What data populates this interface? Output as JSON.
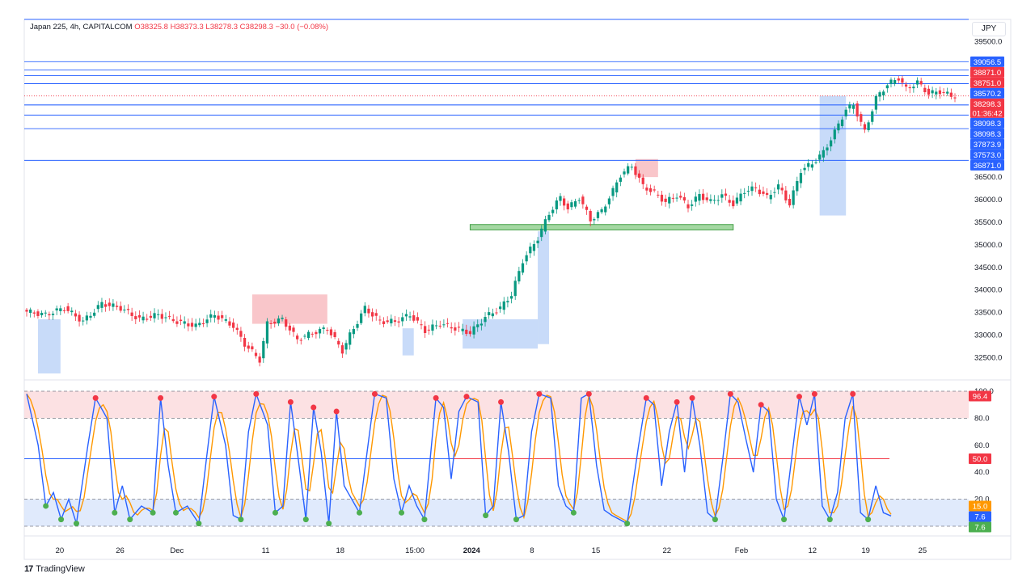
{
  "header": {
    "symbol_line": "Japan 225, 4h, CAPITALCOM",
    "ohlc_line": "O38325.8  H38373.3  L38278.3  C38298.3  −30.0 (−0.08%)",
    "currency": "JPY"
  },
  "footer": {
    "brand": "TradingView",
    "logo_glyph": "17"
  },
  "colors": {
    "up": "#089981",
    "down": "#f23645",
    "level_line": "#2962ff",
    "label_blue": "#2962ff",
    "label_red": "#f23645",
    "ob_red": "#f7b3b8",
    "ob_blue": "#b6cff7",
    "green_zone": "#7ec87a",
    "stoch_k": "#2962ff",
    "stoch_d": "#ff9800"
  },
  "chart_data": [
    {
      "type": "line",
      "name": "Japan 225 price (4h)",
      "ylim": [
        32150,
        39600
      ],
      "y_ticks": [
        "39500.0",
        "36500.0",
        "36000.0",
        "35500.0",
        "35000.0",
        "34500.0",
        "34000.0",
        "33500.0",
        "33000.0",
        "32500.0"
      ],
      "x_tick_labels": [
        "20",
        "26",
        "Dec",
        "11",
        "18",
        "15:00",
        "2024",
        "8",
        "15",
        "22",
        "Feb",
        "12",
        "19",
        "25"
      ],
      "anchors": [
        [
          0,
          33520
        ],
        [
          5,
          33450
        ],
        [
          10,
          33600
        ],
        [
          15,
          33300
        ],
        [
          20,
          33700
        ],
        [
          25,
          33600
        ],
        [
          30,
          33350
        ],
        [
          35,
          33450
        ],
        [
          40,
          33300
        ],
        [
          45,
          33200
        ],
        [
          50,
          33450
        ],
        [
          55,
          33200
        ],
        [
          58,
          32800
        ],
        [
          62,
          32450
        ],
        [
          64,
          33250
        ],
        [
          68,
          33350
        ],
        [
          72,
          32900
        ],
        [
          76,
          33050
        ],
        [
          80,
          33150
        ],
        [
          84,
          32650
        ],
        [
          86,
          33000
        ],
        [
          90,
          33600
        ],
        [
          94,
          33300
        ],
        [
          98,
          33300
        ],
        [
          102,
          33450
        ],
        [
          106,
          33100
        ],
        [
          110,
          33250
        ],
        [
          114,
          33150
        ],
        [
          118,
          33050
        ],
        [
          122,
          33400
        ],
        [
          126,
          33600
        ],
        [
          129,
          33900
        ],
        [
          132,
          34650
        ],
        [
          136,
          35150
        ],
        [
          139,
          35700
        ],
        [
          142,
          36050
        ],
        [
          144,
          35800
        ],
        [
          147,
          36050
        ],
        [
          150,
          35550
        ],
        [
          153,
          35750
        ],
        [
          156,
          36200
        ],
        [
          158,
          36550
        ],
        [
          161,
          36750
        ],
        [
          164,
          36300
        ],
        [
          167,
          36150
        ],
        [
          170,
          35950
        ],
        [
          173,
          36100
        ],
        [
          176,
          35850
        ],
        [
          179,
          36100
        ],
        [
          182,
          35950
        ],
        [
          185,
          36100
        ],
        [
          188,
          35900
        ],
        [
          191,
          36200
        ],
        [
          194,
          36250
        ],
        [
          197,
          36050
        ],
        [
          200,
          36300
        ],
        [
          203,
          35900
        ],
        [
          206,
          36650
        ],
        [
          209,
          36800
        ],
        [
          212,
          37050
        ],
        [
          215,
          37500
        ],
        [
          218,
          38000
        ],
        [
          220,
          38100
        ],
        [
          223,
          37500
        ],
        [
          226,
          38250
        ],
        [
          229,
          38550
        ],
        [
          232,
          38700
        ],
        [
          234,
          38450
        ],
        [
          237,
          38600
        ],
        [
          240,
          38350
        ],
        [
          243,
          38400
        ],
        [
          246,
          38300
        ],
        [
          247,
          38298
        ]
      ],
      "levels": [
        {
          "value": 39056.5,
          "label": "39056.5",
          "color": "blue"
        },
        {
          "value": 38871.0,
          "label": "38871.0",
          "color": "red"
        },
        {
          "value": 38751.0,
          "label": "38751.0",
          "color": "red"
        },
        {
          "value": 38570.2,
          "label": "38570.2",
          "color": "blue"
        },
        {
          "value": 38298.3,
          "label": "38298.3",
          "color": "red",
          "sublabel": "01:36:42"
        },
        {
          "value": 38098.3,
          "label": "38098.3",
          "color": "blue"
        },
        {
          "value": 38098.3,
          "label": "38098.3",
          "color": "blue"
        },
        {
          "value": 37873.9,
          "label": "37873.9",
          "color": "blue"
        },
        {
          "value": 37573.0,
          "label": "37573.0",
          "color": "blue"
        },
        {
          "value": 36871.0,
          "label": "36871.0",
          "color": "blue"
        }
      ],
      "zones": [
        {
          "kind": "green",
          "x0": 118,
          "x1": 188,
          "y0": 35330,
          "y1": 35450
        },
        {
          "kind": "blue",
          "x0": 211,
          "x1": 218,
          "y0": 35650,
          "y1": 38300
        },
        {
          "kind": "blue",
          "x0": 136,
          "x1": 139,
          "y0": 32800,
          "y1": 35300
        },
        {
          "kind": "red",
          "x0": 162,
          "x1": 168,
          "y0": 36500,
          "y1": 36900
        },
        {
          "kind": "red",
          "x0": 60,
          "x1": 80,
          "y0": 33250,
          "y1": 33900
        },
        {
          "kind": "blue",
          "x0": 3,
          "x1": 9,
          "y0": 32150,
          "y1": 33350
        },
        {
          "kind": "blue",
          "x0": 100,
          "x1": 103,
          "y0": 32550,
          "y1": 33150
        },
        {
          "kind": "blue",
          "x0": 116,
          "x1": 136,
          "y0": 32700,
          "y1": 33350
        }
      ]
    },
    {
      "type": "line",
      "name": "Stochastic",
      "ylim": [
        0,
        100
      ],
      "y_ticks": [
        "100.0",
        "80.0",
        "60.0",
        "40.0",
        "20.0"
      ],
      "bands": {
        "upper": 80,
        "lower": 20,
        "top": 100,
        "bottom": 0,
        "mid": 50
      },
      "labels": [
        {
          "value": 96.4,
          "label": "96.4",
          "color": "red"
        },
        {
          "value": 50.0,
          "label": "50.0",
          "color": "red"
        },
        {
          "value": 15.0,
          "label": "15.0",
          "color": "orange"
        },
        {
          "value": 7.6,
          "label": "7.6",
          "color": "blue"
        },
        {
          "value": 7.6,
          "label": "7.6",
          "color": "green"
        }
      ],
      "k_anchors": [
        [
          0,
          98
        ],
        [
          3,
          60
        ],
        [
          5,
          15
        ],
        [
          7,
          25
        ],
        [
          9,
          5
        ],
        [
          11,
          20
        ],
        [
          13,
          2
        ],
        [
          16,
          60
        ],
        [
          18,
          95
        ],
        [
          21,
          80
        ],
        [
          23,
          10
        ],
        [
          25,
          30
        ],
        [
          27,
          5
        ],
        [
          30,
          15
        ],
        [
          33,
          10
        ],
        [
          35,
          95
        ],
        [
          37,
          45
        ],
        [
          39,
          10
        ],
        [
          42,
          15
        ],
        [
          45,
          2
        ],
        [
          47,
          50
        ],
        [
          49,
          96
        ],
        [
          52,
          60
        ],
        [
          54,
          8
        ],
        [
          56,
          5
        ],
        [
          58,
          70
        ],
        [
          60,
          98
        ],
        [
          63,
          75
        ],
        [
          65,
          10
        ],
        [
          67,
          15
        ],
        [
          69,
          92
        ],
        [
          71,
          50
        ],
        [
          73,
          5
        ],
        [
          75,
          88
        ],
        [
          77,
          55
        ],
        [
          79,
          2
        ],
        [
          81,
          85
        ],
        [
          83,
          30
        ],
        [
          85,
          20
        ],
        [
          87,
          10
        ],
        [
          89,
          55
        ],
        [
          91,
          98
        ],
        [
          94,
          95
        ],
        [
          96,
          35
        ],
        [
          98,
          10
        ],
        [
          100,
          30
        ],
        [
          102,
          15
        ],
        [
          104,
          5
        ],
        [
          107,
          95
        ],
        [
          109,
          88
        ],
        [
          111,
          35
        ],
        [
          113,
          85
        ],
        [
          115,
          96
        ],
        [
          118,
          92
        ],
        [
          120,
          8
        ],
        [
          122,
          15
        ],
        [
          124,
          92
        ],
        [
          126,
          55
        ],
        [
          128,
          5
        ],
        [
          130,
          8
        ],
        [
          132,
          70
        ],
        [
          134,
          98
        ],
        [
          137,
          95
        ],
        [
          139,
          30
        ],
        [
          141,
          15
        ],
        [
          143,
          10
        ],
        [
          145,
          95
        ],
        [
          147,
          98
        ],
        [
          149,
          45
        ],
        [
          151,
          12
        ],
        [
          153,
          8
        ],
        [
          155,
          5
        ],
        [
          157,
          2
        ],
        [
          160,
          60
        ],
        [
          162,
          95
        ],
        [
          164,
          90
        ],
        [
          166,
          30
        ],
        [
          168,
          70
        ],
        [
          170,
          92
        ],
        [
          172,
          40
        ],
        [
          174,
          95
        ],
        [
          176,
          60
        ],
        [
          178,
          10
        ],
        [
          180,
          5
        ],
        [
          182,
          50
        ],
        [
          184,
          98
        ],
        [
          186,
          92
        ],
        [
          188,
          65
        ],
        [
          190,
          40
        ],
        [
          192,
          90
        ],
        [
          194,
          85
        ],
        [
          196,
          20
        ],
        [
          198,
          5
        ],
        [
          200,
          50
        ],
        [
          202,
          96
        ],
        [
          204,
          75
        ],
        [
          206,
          98
        ],
        [
          208,
          15
        ],
        [
          210,
          5
        ],
        [
          212,
          25
        ],
        [
          214,
          80
        ],
        [
          216,
          98
        ],
        [
          218,
          10
        ],
        [
          220,
          5
        ],
        [
          222,
          30
        ],
        [
          224,
          10
        ],
        [
          226,
          7.6
        ]
      ]
    }
  ]
}
